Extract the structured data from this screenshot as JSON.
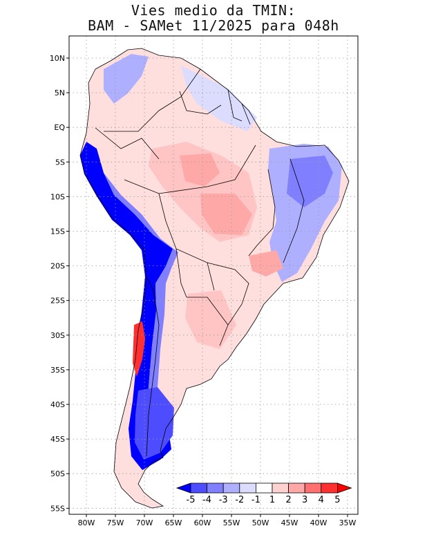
{
  "title": {
    "line1": "Vies medio da TMIN:",
    "line2": "BAM - SAMet 11/2025  para 048h"
  },
  "map": {
    "region": "South America",
    "variable": "TMIN bias",
    "lat_labels": [
      "10N",
      "5N",
      "EQ",
      "5S",
      "10S",
      "15S",
      "20S",
      "25S",
      "30S",
      "35S",
      "40S",
      "45S",
      "50S",
      "55S"
    ],
    "lon_labels": [
      "80W",
      "75W",
      "70W",
      "65W",
      "60W",
      "55W",
      "50W",
      "45W",
      "40W",
      "35W"
    ]
  },
  "colorbar": {
    "labels": [
      "-5",
      "-4",
      "-3",
      "-2",
      "-1",
      "1",
      "2",
      "3",
      "4",
      "5"
    ],
    "colors": [
      "#0000ff",
      "#4d4dff",
      "#7f7fff",
      "#afafff",
      "#dcdcff",
      "#ffffff",
      "#ffd2d2",
      "#ffa8a8",
      "#ff7070",
      "#ff3030",
      "#ff0000"
    ]
  }
}
